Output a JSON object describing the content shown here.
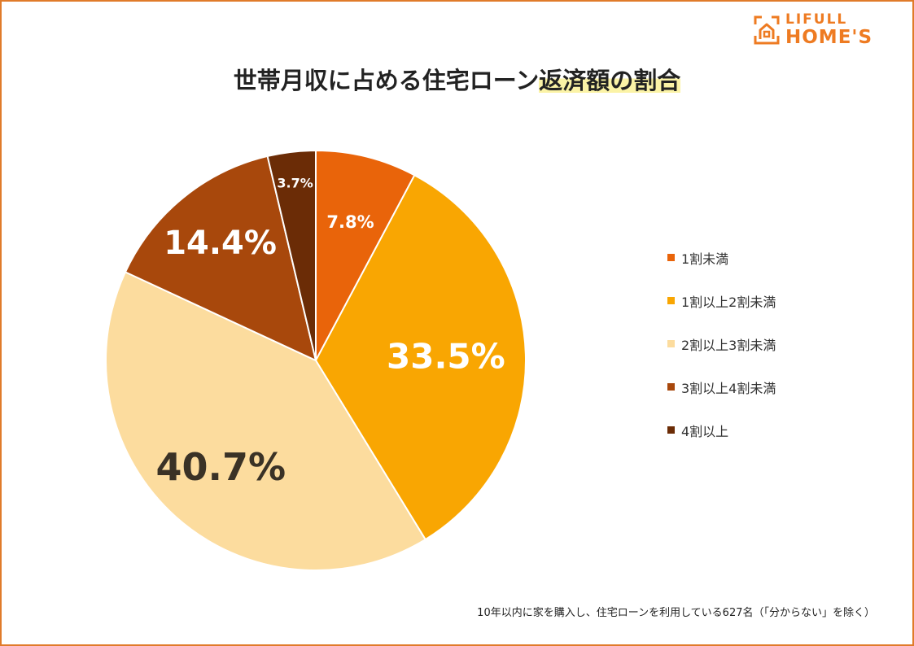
{
  "logo": {
    "line1": "LIFULL",
    "line2": "HOME'S"
  },
  "title": {
    "main": "世帯月収に占める住宅ローン",
    "highlight": "返済額の割合"
  },
  "chart_data": {
    "type": "pie",
    "title": "世帯月収に占める住宅ローン返済額の割合",
    "slices": [
      {
        "label": "1割未満",
        "value": 7.8,
        "display": "7.8%",
        "color": "#e9640a",
        "text_color": "#ffffff"
      },
      {
        "label": "1割以上2割未満",
        "value": 33.5,
        "display": "33.5%",
        "color": "#f9a602",
        "text_color": "#ffffff"
      },
      {
        "label": "2割以上3割未満",
        "value": 40.7,
        "display": "40.7%",
        "color": "#fcdc9e",
        "text_color": "#3a3226"
      },
      {
        "label": "3割以上4割未満",
        "value": 14.4,
        "display": "14.4%",
        "color": "#a8480c",
        "text_color": "#ffffff"
      },
      {
        "label": "4割以上",
        "value": 3.7,
        "display": "3.7%",
        "color": "#6b2c06",
        "text_color": "#ffffff"
      }
    ],
    "legend_position": "right"
  },
  "footnote": "10年以内に家を購入し、住宅ローンを利用している627名（「分からない」を除く）"
}
